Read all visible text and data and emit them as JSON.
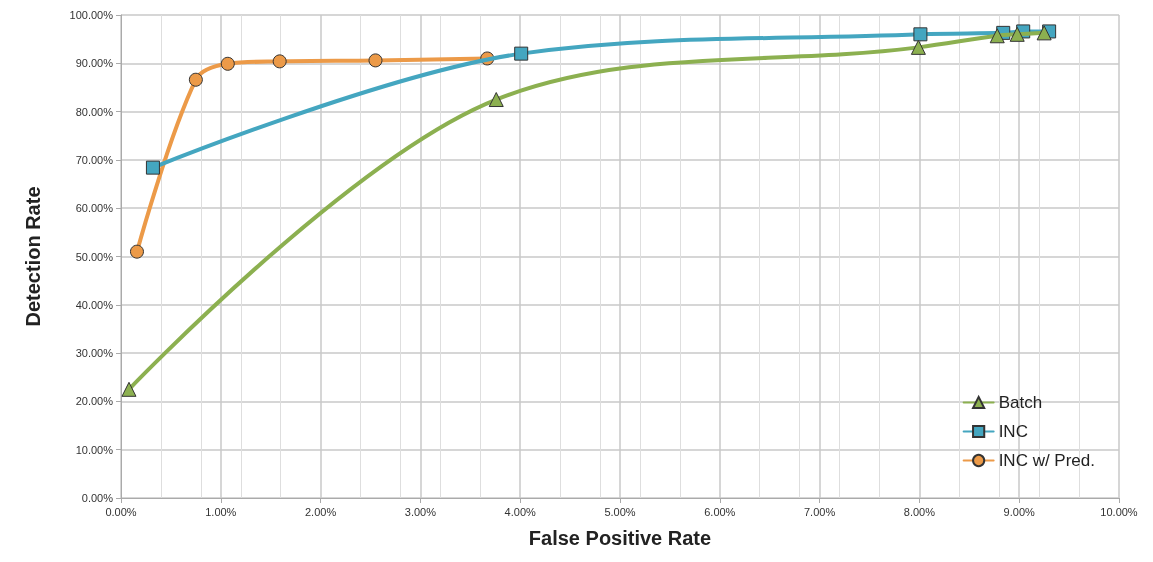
{
  "chart_data": {
    "type": "line",
    "xlabel": "False Positive Rate",
    "ylabel": "Detection Rate",
    "xlim": [
      0,
      10
    ],
    "ylim": [
      0,
      100
    ],
    "xticks": [
      {
        "value": 0,
        "label": "0.00%"
      },
      {
        "value": 1,
        "label": "1.00%"
      },
      {
        "value": 2,
        "label": "2.00%"
      },
      {
        "value": 3,
        "label": "3.00%"
      },
      {
        "value": 4,
        "label": "4.00%"
      },
      {
        "value": 5,
        "label": "5.00%"
      },
      {
        "value": 6,
        "label": "6.00%"
      },
      {
        "value": 7,
        "label": "7.00%"
      },
      {
        "value": 8,
        "label": "8.00%"
      },
      {
        "value": 9,
        "label": "9.00%"
      },
      {
        "value": 10,
        "label": "10.00%"
      }
    ],
    "yticks": [
      {
        "value": 0,
        "label": "0.00%"
      },
      {
        "value": 10,
        "label": "10.00%"
      },
      {
        "value": 20,
        "label": "20.00%"
      },
      {
        "value": 30,
        "label": "30.00%"
      },
      {
        "value": 40,
        "label": "40.00%"
      },
      {
        "value": 50,
        "label": "50.00%"
      },
      {
        "value": 60,
        "label": "60.00%"
      },
      {
        "value": 70,
        "label": "70.00%"
      },
      {
        "value": 80,
        "label": "80.00%"
      },
      {
        "value": 90,
        "label": "90.00%"
      },
      {
        "value": 100,
        "label": "100.00%"
      }
    ],
    "grid": true,
    "legend": "bottom right",
    "line_style": "solid",
    "series": [
      {
        "name": "Batch",
        "color": "#8cb050",
        "marker": "triangle",
        "x": [
          0.08,
          3.76,
          7.99,
          8.78,
          8.98,
          9.25
        ],
        "values": [
          22.5,
          82.5,
          93.3,
          95.7,
          96.0,
          96.3
        ]
      },
      {
        "name": "INC",
        "color": "#44a6c0",
        "marker": "square",
        "x": [
          0.32,
          4.01,
          8.01,
          8.84,
          9.04,
          9.3
        ],
        "values": [
          68.4,
          92.0,
          96.0,
          96.3,
          96.6,
          96.6
        ]
      },
      {
        "name": "INC w/ Pred.",
        "color": "#ec9a48",
        "marker": "circle",
        "x": [
          0.16,
          0.75,
          1.07,
          1.59,
          2.55,
          3.67
        ],
        "values": [
          51.0,
          86.6,
          89.9,
          90.4,
          90.6,
          91.0
        ]
      }
    ]
  }
}
